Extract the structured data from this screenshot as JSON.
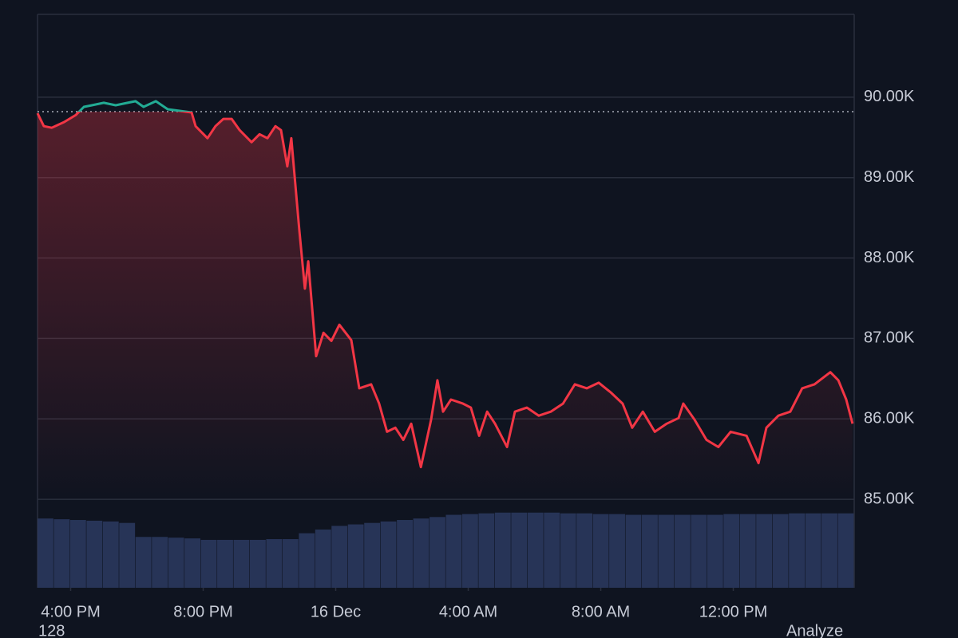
{
  "chart_data": {
    "type": "line",
    "x": [
      15.0,
      15.19,
      15.43,
      15.8,
      16.16,
      16.4,
      16.64,
      17.0,
      17.36,
      17.72,
      17.96,
      18.2,
      18.57,
      18.93,
      19.29,
      19.65,
      19.77,
      20.13,
      20.37,
      20.61,
      20.86,
      21.1,
      21.46,
      21.7,
      21.94,
      22.18,
      22.35,
      22.54,
      22.66,
      22.9,
      23.07,
      23.17,
      23.41,
      23.63,
      23.87,
      24.11,
      24.47,
      24.71,
      25.07,
      25.31,
      25.55,
      25.8,
      26.04,
      26.28,
      26.57,
      26.88,
      27.07,
      27.24,
      27.48,
      27.84,
      28.08,
      28.33,
      28.57,
      28.81,
      29.17,
      29.41,
      29.77,
      30.13,
      30.49,
      30.86,
      31.22,
      31.58,
      31.94,
      32.3,
      32.66,
      32.95,
      33.27,
      33.63,
      33.99,
      34.35,
      34.49,
      34.83,
      35.19,
      35.55,
      35.92,
      36.4,
      36.76,
      37.0,
      37.36,
      37.72,
      38.08,
      38.45,
      38.93,
      39.17,
      39.41,
      39.6
    ],
    "values": [
      89800,
      89640,
      89620,
      89690,
      89780,
      89880,
      89900,
      89930,
      89900,
      89930,
      89950,
      89880,
      89950,
      89850,
      89830,
      89810,
      89640,
      89490,
      89640,
      89730,
      89730,
      89590,
      89440,
      89540,
      89490,
      89640,
      89590,
      89140,
      89490,
      88350,
      87620,
      87960,
      86780,
      87070,
      86970,
      87170,
      86980,
      86380,
      86430,
      86190,
      85840,
      85890,
      85740,
      85940,
      85400,
      85990,
      86480,
      86090,
      86240,
      86190,
      86140,
      85790,
      86090,
      85940,
      85650,
      86090,
      86140,
      86040,
      86090,
      86190,
      86430,
      86380,
      86450,
      86330,
      86190,
      85890,
      86090,
      85840,
      85940,
      86010,
      86190,
      85990,
      85740,
      85650,
      85840,
      85790,
      85450,
      85890,
      86040,
      86090,
      86380,
      86430,
      86580,
      86480,
      86240,
      85940
    ],
    "baseline": 89820,
    "color_up": "#22ab94",
    "color_down": "#f23645",
    "xlim": [
      15,
      39.65
    ],
    "xticks": [
      {
        "value": 16,
        "label": "4:00 PM"
      },
      {
        "value": 20,
        "label": "8:00 PM"
      },
      {
        "value": 24,
        "label": "16 Dec"
      },
      {
        "value": 28,
        "label": "4:00 AM"
      },
      {
        "value": 32,
        "label": "8:00 AM"
      },
      {
        "value": 36,
        "label": "12:00 PM"
      }
    ],
    "ylim": [
      83900,
      91030
    ],
    "yticks": [
      {
        "value": 85000,
        "label": "85.00K"
      },
      {
        "value": 86000,
        "label": "86.00K"
      },
      {
        "value": 87000,
        "label": "87.00K"
      },
      {
        "value": 88000,
        "label": "88.00K"
      },
      {
        "value": 89000,
        "label": "89.00K"
      },
      {
        "value": 90000,
        "label": "90.00K"
      }
    ],
    "grid": true,
    "volume": {
      "color": "#2c3961",
      "vlim": [
        0,
        105
      ],
      "values": [
        94,
        93,
        92,
        91,
        90,
        88,
        69,
        69,
        68,
        67,
        65,
        65,
        65,
        65,
        66,
        66,
        74,
        79,
        84,
        86,
        88,
        90,
        92,
        94,
        96,
        99,
        100,
        101,
        102,
        102,
        102,
        102,
        101,
        101,
        100,
        100,
        99,
        99,
        99,
        99,
        99,
        99,
        100,
        100,
        100,
        100,
        101,
        101,
        101,
        101
      ]
    },
    "footer_left": "128",
    "footer_right": "Analyze"
  }
}
